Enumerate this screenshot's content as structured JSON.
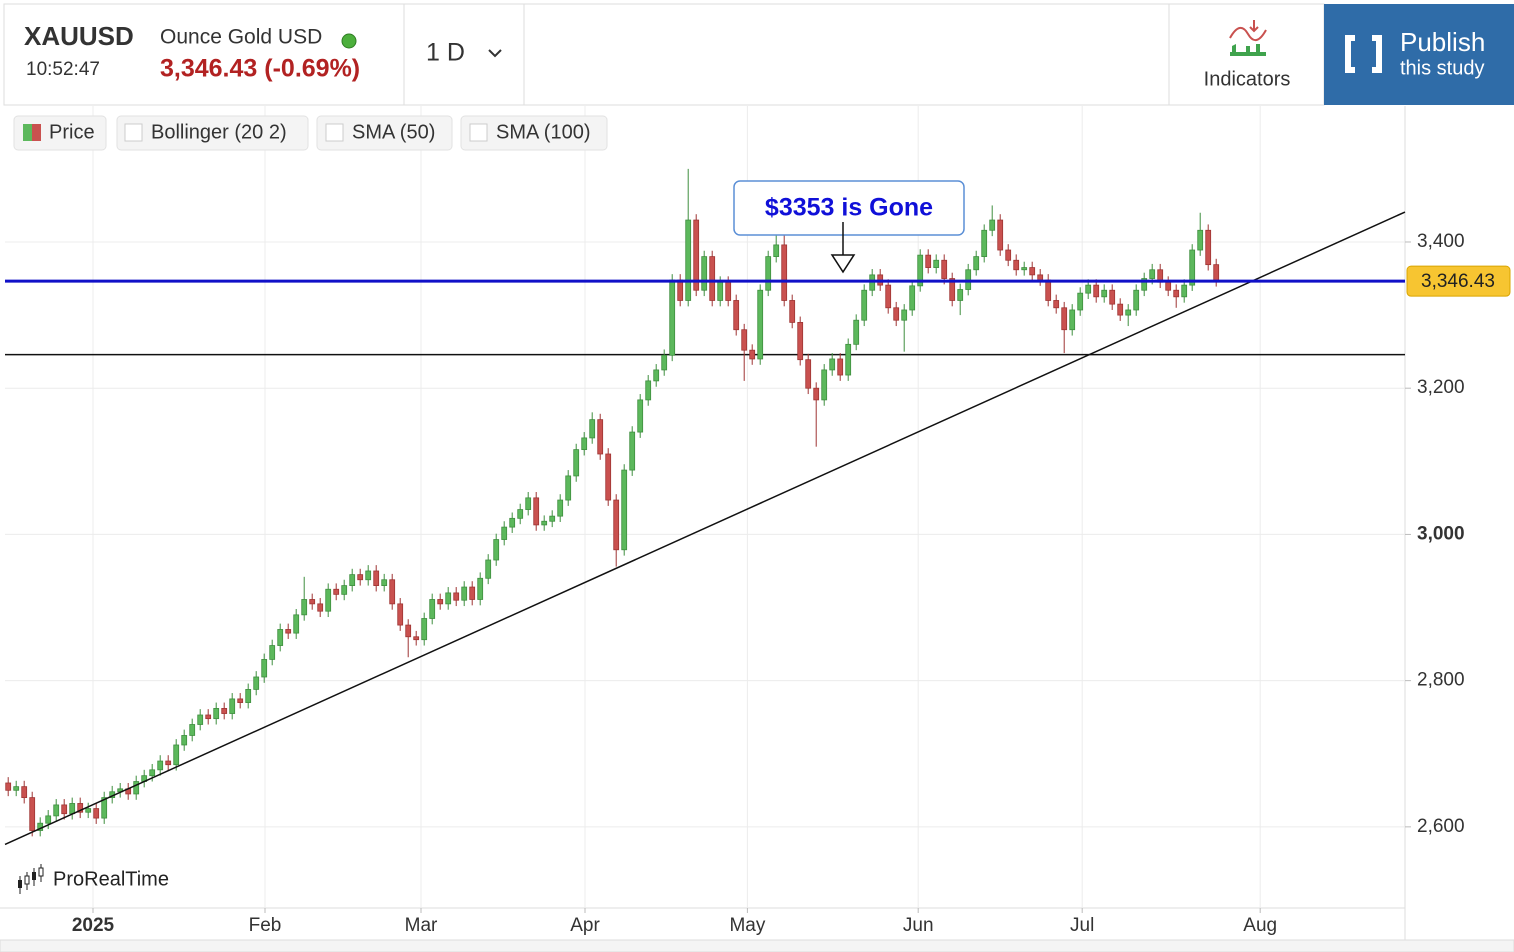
{
  "header": {
    "symbol": "XAUUSD",
    "name": "Ounce Gold USD",
    "time": "10:52:47",
    "price": "3,346.43 (-0.69%)",
    "interval": "1 D",
    "indicators": "Indicators",
    "publish": "Publish",
    "publish_sub": "this study"
  },
  "legend": [
    "Price",
    "Bollinger (20 2)",
    "SMA (50)",
    "SMA (100)"
  ],
  "watermark": "ProRealTime",
  "chart_data": {
    "type": "candlestick",
    "annotation": "$3353 is Gone",
    "up_color": "#5cb85c",
    "down_color": "#c9514f",
    "open": [
      2660,
      2650,
      2655,
      2640,
      2595,
      2605,
      2615,
      2630,
      2618,
      2632,
      2620,
      2625,
      2612,
      2640,
      2648,
      2652,
      2645,
      2662,
      2670,
      2678,
      2690,
      2685,
      2712,
      2725,
      2740,
      2753,
      2748,
      2762,
      2755,
      2775,
      2770,
      2788,
      2805,
      2829,
      2848,
      2870,
      2865,
      2890,
      2911,
      2905,
      2895,
      2925,
      2918,
      2930,
      2945,
      2938,
      2950,
      2930,
      2938,
      2905,
      2876,
      2860,
      2856,
      2885,
      2911,
      2905,
      2920,
      2910,
      2928,
      2911,
      2940,
      2965,
      2993,
      3010,
      3022,
      3034,
      3050,
      3013,
      3018,
      3025,
      3047,
      3080,
      3116,
      3132,
      3157,
      3110,
      3047,
      2979,
      3088,
      3140,
      3184,
      3210,
      3225,
      3245,
      3348,
      3320,
      3430,
      3334,
      3380,
      3320,
      3345,
      3320,
      3280,
      3252,
      3240,
      3334,
      3380,
      3396,
      3320,
      3290,
      3239,
      3200,
      3184,
      3225,
      3240,
      3218,
      3260,
      3293,
      3334,
      3355,
      3341,
      3310,
      3293,
      3307,
      3340,
      3382,
      3365,
      3375,
      3350,
      3320,
      3335,
      3362,
      3380,
      3416,
      3430,
      3389,
      3375,
      3362,
      3365,
      3355,
      3348,
      3320,
      3310,
      3280,
      3307,
      3330,
      3341,
      3325,
      3334,
      3315,
      3300,
      3307,
      3334,
      3350,
      3362,
      3345,
      3334,
      3325,
      3341,
      3389,
      3416,
      3369
    ],
    "high": [
      2668,
      2663,
      2663,
      2648,
      2613,
      2623,
      2638,
      2638,
      2640,
      2640,
      2633,
      2633,
      2648,
      2656,
      2660,
      2660,
      2670,
      2678,
      2686,
      2698,
      2698,
      2720,
      2733,
      2748,
      2761,
      2761,
      2770,
      2770,
      2783,
      2783,
      2796,
      2813,
      2837,
      2856,
      2878,
      2878,
      2898,
      2942,
      2919,
      2913,
      2933,
      2933,
      2938,
      2953,
      2953,
      2958,
      2958,
      2946,
      2946,
      2913,
      2884,
      2868,
      2893,
      2919,
      2919,
      2928,
      2928,
      2936,
      2936,
      2948,
      2973,
      3001,
      3018,
      3030,
      3042,
      3058,
      3058,
      3026,
      3033,
      3055,
      3088,
      3124,
      3140,
      3167,
      3165,
      3118,
      3055,
      3096,
      3148,
      3192,
      3218,
      3233,
      3253,
      3356,
      3356,
      3500,
      3438,
      3388,
      3388,
      3353,
      3353,
      3328,
      3288,
      3260,
      3342,
      3388,
      3435,
      3410,
      3328,
      3298,
      3247,
      3208,
      3233,
      3248,
      3248,
      3268,
      3301,
      3342,
      3363,
      3363,
      3349,
      3318,
      3315,
      3348,
      3390,
      3390,
      3383,
      3383,
      3358,
      3343,
      3370,
      3388,
      3424,
      3450,
      3438,
      3397,
      3383,
      3373,
      3373,
      3363,
      3356,
      3328,
      3318,
      3315,
      3338,
      3349,
      3349,
      3342,
      3342,
      3323,
      3315,
      3342,
      3358,
      3370,
      3370,
      3353,
      3342,
      3349,
      3397,
      3440,
      3424,
      3377
    ],
    "low": [
      2642,
      2642,
      2632,
      2587,
      2587,
      2597,
      2607,
      2610,
      2610,
      2612,
      2612,
      2604,
      2604,
      2632,
      2640,
      2637,
      2637,
      2654,
      2662,
      2670,
      2677,
      2677,
      2704,
      2717,
      2732,
      2740,
      2740,
      2747,
      2747,
      2762,
      2762,
      2780,
      2797,
      2821,
      2840,
      2857,
      2857,
      2882,
      2897,
      2887,
      2887,
      2910,
      2910,
      2922,
      2930,
      2930,
      2922,
      2922,
      2897,
      2868,
      2832,
      2848,
      2848,
      2877,
      2897,
      2897,
      2902,
      2902,
      2903,
      2903,
      2932,
      2957,
      2985,
      3002,
      3014,
      3026,
      3005,
      3005,
      3010,
      3017,
      3039,
      3072,
      3108,
      3124,
      3102,
      3039,
      2956,
      2971,
      3080,
      3132,
      3176,
      3202,
      3217,
      3237,
      3312,
      3312,
      3326,
      3326,
      3312,
      3312,
      3312,
      3272,
      3210,
      3232,
      3232,
      3326,
      3372,
      3312,
      3282,
      3231,
      3192,
      3120,
      3176,
      3217,
      3210,
      3210,
      3252,
      3285,
      3326,
      3333,
      3302,
      3285,
      3250,
      3299,
      3332,
      3357,
      3357,
      3342,
      3312,
      3300,
      3327,
      3354,
      3372,
      3408,
      3381,
      3367,
      3354,
      3354,
      3347,
      3340,
      3312,
      3302,
      3248,
      3272,
      3299,
      3322,
      3317,
      3317,
      3307,
      3292,
      3285,
      3299,
      3326,
      3342,
      3337,
      3326,
      3310,
      3317,
      3333,
      3381,
      3361,
      3339
    ],
    "close": [
      2650,
      2655,
      2640,
      2595,
      2605,
      2615,
      2630,
      2618,
      2632,
      2620,
      2625,
      2612,
      2640,
      2648,
      2652,
      2645,
      2662,
      2670,
      2678,
      2690,
      2685,
      2712,
      2725,
      2740,
      2753,
      2748,
      2762,
      2755,
      2775,
      2770,
      2788,
      2805,
      2829,
      2848,
      2870,
      2865,
      2890,
      2911,
      2905,
      2895,
      2925,
      2918,
      2930,
      2945,
      2938,
      2950,
      2930,
      2938,
      2905,
      2876,
      2860,
      2856,
      2885,
      2911,
      2905,
      2920,
      2910,
      2928,
      2911,
      2940,
      2965,
      2993,
      3010,
      3022,
      3034,
      3050,
      3013,
      3018,
      3025,
      3047,
      3080,
      3116,
      3132,
      3157,
      3110,
      3047,
      2979,
      3088,
      3140,
      3184,
      3210,
      3225,
      3245,
      3348,
      3320,
      3430,
      3334,
      3380,
      3320,
      3345,
      3320,
      3280,
      3252,
      3240,
      3334,
      3380,
      3396,
      3320,
      3290,
      3239,
      3200,
      3184,
      3225,
      3240,
      3218,
      3260,
      3293,
      3334,
      3355,
      3341,
      3310,
      3293,
      3307,
      3340,
      3382,
      3365,
      3375,
      3350,
      3320,
      3335,
      3362,
      3380,
      3416,
      3430,
      3389,
      3375,
      3362,
      3365,
      3355,
      3348,
      3320,
      3310,
      3280,
      3307,
      3330,
      3341,
      3325,
      3334,
      3315,
      3300,
      3307,
      3334,
      3350,
      3362,
      3345,
      3334,
      3325,
      3341,
      3389,
      3416,
      3369,
      3346
    ],
    "last_price": 3346.43,
    "last_price_label": "3,346.43",
    "last_price_color": "#1010c8",
    "support_line": 3246,
    "trend_line": {
      "from": 2576,
      "to": 3441
    },
    "annotation_price": 3359,
    "xlim": [
      -0.4,
      174.6
    ],
    "xticks": [
      {
        "value": 10.6,
        "label": "2025"
      },
      {
        "value": 32.1,
        "label": "Feb"
      },
      {
        "value": 51.6,
        "label": "Mar"
      },
      {
        "value": 72.1,
        "label": "Apr"
      },
      {
        "value": 92.4,
        "label": "May"
      },
      {
        "value": 113.75,
        "label": "Jun"
      },
      {
        "value": 134.25,
        "label": "Jul"
      },
      {
        "value": 156.5,
        "label": "Aug"
      }
    ],
    "ylim": [
      2489,
      3586
    ],
    "yticks": [
      {
        "value": 2600,
        "label": "2,600"
      },
      {
        "value": 2800,
        "label": "2,800"
      },
      {
        "value": 3000,
        "label": "3,000"
      },
      {
        "value": 3200,
        "label": "3,200"
      },
      {
        "value": 3400,
        "label": "3,400"
      }
    ],
    "grid": true
  }
}
